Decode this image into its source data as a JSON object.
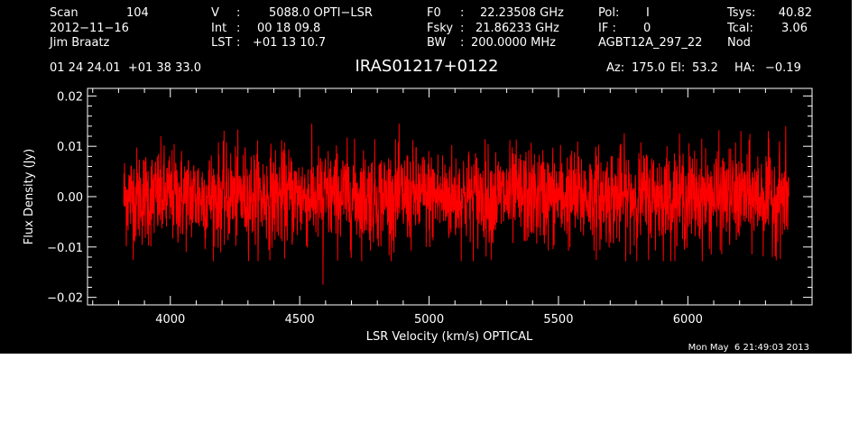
{
  "header": {
    "row1": {
      "scan_label": "Scan",
      "scan_value": "104",
      "v_label": "V",
      "v_sep": ":",
      "v_value": "5088.0 OPTI−LSR",
      "f0_label": "F0",
      "f0_sep": ":",
      "f0_value": "22.23508 GHz",
      "pol_label": "Pol:",
      "pol_value": "I",
      "tsys_label": "Tsys:",
      "tsys_value": "40.82"
    },
    "row2": {
      "date": "2012−11−16",
      "int_label": "Int",
      "int_sep": ":",
      "int_value": "00 18 09.8",
      "fsky_label": "Fsky",
      "fsky_sep": ":",
      "fsky_value": "21.86233 GHz",
      "if_label": "IF :",
      "if_value": "0",
      "tcal_label": "Tcal:",
      "tcal_value": "3.06"
    },
    "row3": {
      "observer": "Jim Braatz",
      "lst_label": "LST",
      "lst_sep": ":",
      "lst_value": "+01 13 10.7",
      "bw_label": "BW",
      "bw_sep": ":",
      "bw_value": "200.0000 MHz",
      "project": "AGBT12A_297_22",
      "mode": "Nod"
    },
    "coords": "01 24 24.01  +01 38 33.0",
    "source": "IRAS01217+0122",
    "az_label": "Az:",
    "az_value": "175.0",
    "el_label": "El:",
    "el_value": "53.2",
    "ha_label": "HA:",
    "ha_value": "−0.19"
  },
  "timestamp": "Mon May  6 21:49:03 2013",
  "colors": {
    "background": "#000000",
    "foreground": "#ffffff",
    "series": "#ff0000",
    "page": "#ffffff"
  },
  "chart_data": {
    "type": "line",
    "title": "IRAS01217+0122",
    "xlabel": "LSR Velocity (km/s) OPTICAL",
    "ylabel": "Flux Density (Jy)",
    "xlim": [
      3680,
      6480
    ],
    "ylim": [
      -0.0215,
      0.0215
    ],
    "xticks": [
      {
        "value": 4000,
        "label": "4000"
      },
      {
        "value": 4500,
        "label": "4500"
      },
      {
        "value": 5000,
        "label": "5000"
      },
      {
        "value": 5500,
        "label": "5500"
      },
      {
        "value": 6000,
        "label": "6000"
      }
    ],
    "yticks": [
      {
        "value": 0.02,
        "label": "0.02"
      },
      {
        "value": 0.01,
        "label": "0.01"
      },
      {
        "value": 0.0,
        "label": "0.00"
      },
      {
        "value": -0.01,
        "label": "−0.01"
      },
      {
        "value": -0.02,
        "label": "−0.02"
      }
    ],
    "grid": false,
    "series": [
      {
        "x_start": 3820,
        "x_end": 6390,
        "noise_rms": 0.0048,
        "noise_max": 0.0145,
        "noise_min": -0.0128,
        "spike_x": 4590,
        "spike_y": -0.0175,
        "color": "#ff0000"
      }
    ]
  }
}
